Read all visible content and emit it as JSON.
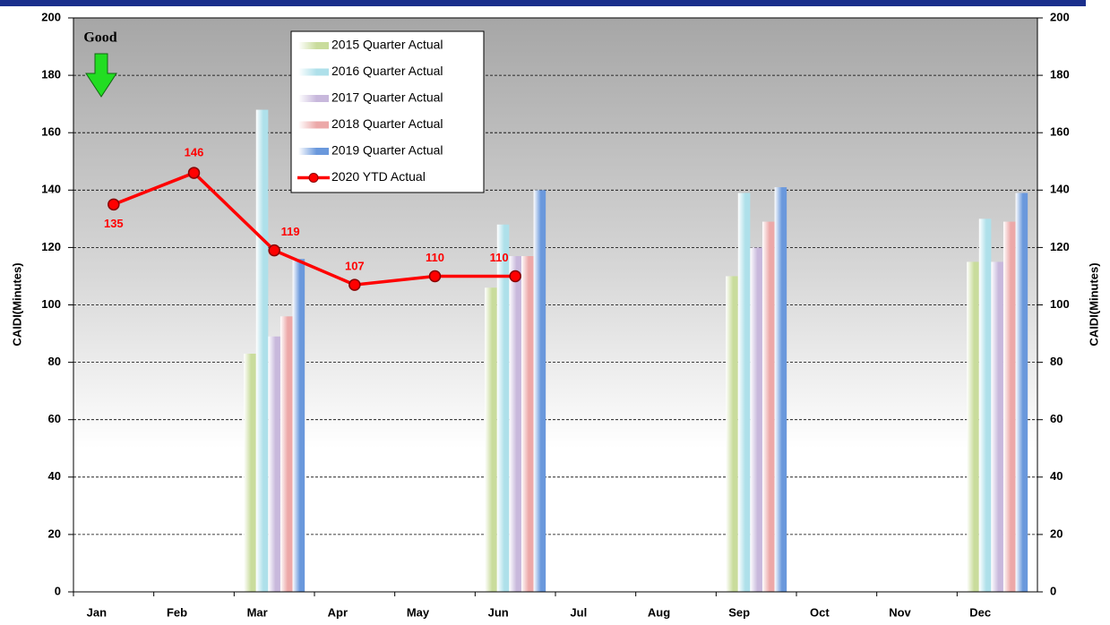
{
  "chart_data": {
    "type": "bar",
    "annotation": "Good",
    "ylabel": "CAIDI(Minutes)",
    "y2label": "CAIDI(Minutes)",
    "categories": [
      "Jan",
      "Feb",
      "Mar",
      "Apr",
      "May",
      "Jun",
      "Jul",
      "Aug",
      "Sep",
      "Oct",
      "Nov",
      "Dec"
    ],
    "series": [
      {
        "name": "2015 Quarter Actual",
        "type": "bar",
        "color": "#c9dc9c",
        "values": [
          null,
          null,
          83,
          null,
          null,
          106,
          null,
          null,
          110,
          null,
          null,
          115
        ]
      },
      {
        "name": "2016 Quarter Actual",
        "type": "bar",
        "color": "#aee0ea",
        "values": [
          null,
          null,
          168,
          null,
          null,
          128,
          null,
          null,
          139,
          null,
          null,
          130
        ]
      },
      {
        "name": "2017 Quarter Actual",
        "type": "bar",
        "color": "#c8b8dc",
        "values": [
          null,
          null,
          89,
          null,
          null,
          117,
          null,
          null,
          120,
          null,
          null,
          115
        ]
      },
      {
        "name": "2018 Quarter Actual",
        "type": "bar",
        "color": "#eca8a8",
        "values": [
          null,
          null,
          96,
          null,
          null,
          117,
          null,
          null,
          129,
          null,
          null,
          129
        ]
      },
      {
        "name": "2019 Quarter Actual",
        "type": "bar",
        "color": "#6a98dc",
        "values": [
          null,
          null,
          116,
          null,
          null,
          140,
          null,
          null,
          141,
          null,
          null,
          139
        ]
      },
      {
        "name": "2020 YTD Actual",
        "type": "line",
        "axis": "y2",
        "color": "#ff0000",
        "values": [
          135,
          146,
          119,
          107,
          110,
          110,
          null,
          null,
          null,
          null,
          null,
          null
        ]
      }
    ],
    "ylim": [
      0,
      200
    ],
    "yticks": [
      0,
      20,
      40,
      60,
      80,
      100,
      120,
      140,
      160,
      180,
      200
    ],
    "y2lim": [
      0,
      200
    ],
    "y2ticks": [
      0,
      20,
      40,
      60,
      80,
      100,
      120,
      140,
      160,
      180,
      200
    ],
    "grid": true,
    "legend": "top"
  }
}
